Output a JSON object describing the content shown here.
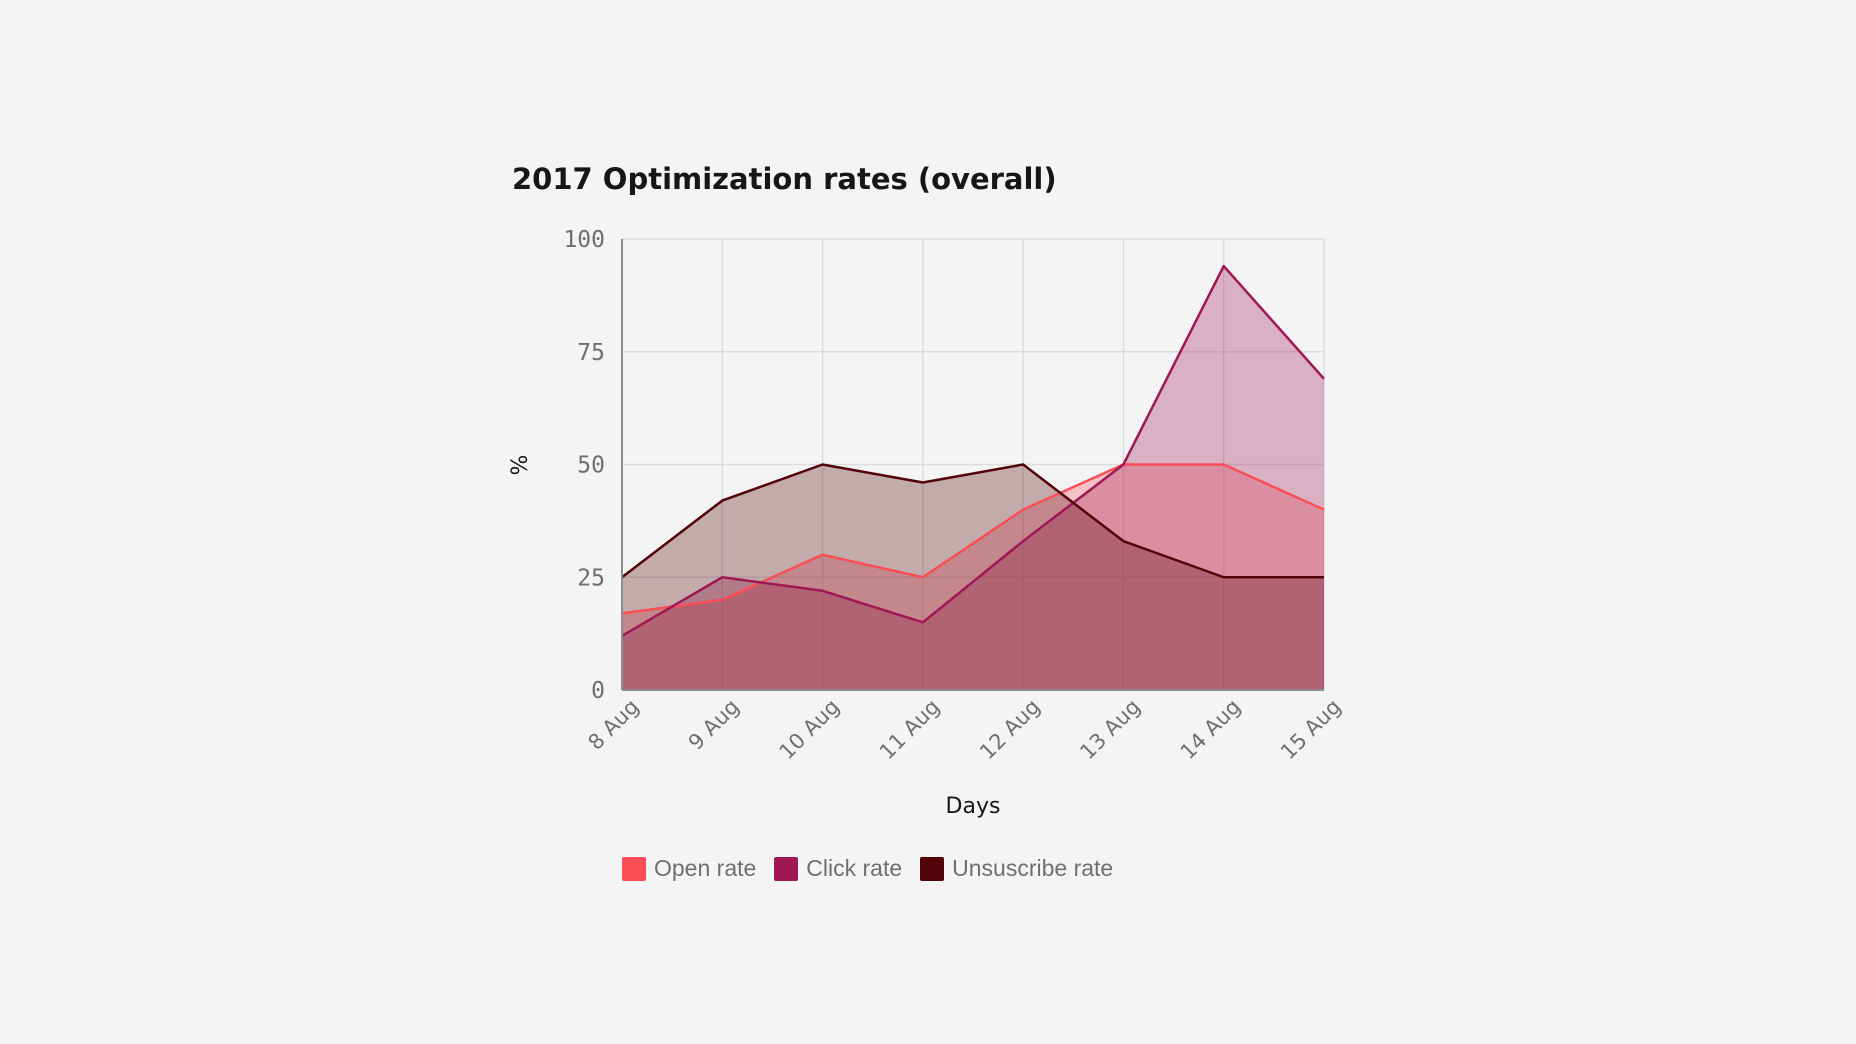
{
  "chart_data": {
    "type": "area",
    "title": "2017 Optimization rates (overall)",
    "xlabel": "Days",
    "ylabel": "%",
    "categories": [
      "8 Aug",
      "9 Aug",
      "10 Aug",
      "11 Aug",
      "12 Aug",
      "13 Aug",
      "14 Aug",
      "15 Aug"
    ],
    "yticks": [
      0,
      25,
      50,
      75,
      100
    ],
    "ylim": [
      0,
      100
    ],
    "grid": true,
    "legend_position": "bottom-left",
    "series": [
      {
        "name": "Open rate",
        "color": "#fa4d56",
        "values": [
          17,
          20,
          30,
          25,
          40,
          50,
          50,
          40
        ]
      },
      {
        "name": "Click rate",
        "color": "#9f1853",
        "values": [
          12,
          25,
          22,
          15,
          33,
          50,
          94,
          69
        ]
      },
      {
        "name": "Unsuscribe rate",
        "color": "#520408",
        "values": [
          25,
          42,
          50,
          46,
          50,
          33,
          25,
          25
        ]
      }
    ]
  }
}
